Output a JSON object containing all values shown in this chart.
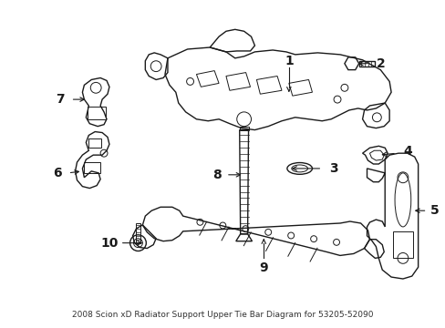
{
  "bg_color": "#ffffff",
  "line_color": "#1a1a1a",
  "fig_width": 4.89,
  "fig_height": 3.6,
  "dpi": 100,
  "title": "2008 Scion xD Radiator Support Upper Tie Bar Diagram for 53205-52090",
  "title_fontsize": 6.5,
  "label_fontsize": 10
}
